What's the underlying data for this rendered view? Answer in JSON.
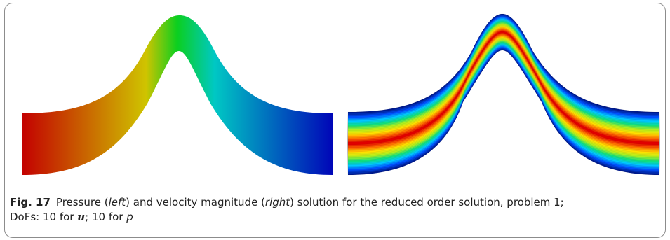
{
  "figure": {
    "label": "Fig. 17",
    "caption_part1": "Pressure (",
    "left_word": "left",
    "caption_part2": ") and velocity magnitude (",
    "right_word": "right",
    "caption_part3": ") solution for the reduced order solution, problem 1;",
    "caption_part4": "DoFs: 10 for ",
    "velocity_symbol": "u",
    "caption_part5": "; 10 for ",
    "pressure_symbol": "p"
  },
  "colors": {
    "pressure": [
      "#c30000",
      "#cfc400",
      "#0bcf1f",
      "#00c8c4",
      "#0006b8"
    ],
    "velocity": [
      "#001a8c",
      "#0050ff",
      "#00c8ff",
      "#10e080",
      "#aef020",
      "#ffe000",
      "#ff7000",
      "#e00000"
    ]
  }
}
